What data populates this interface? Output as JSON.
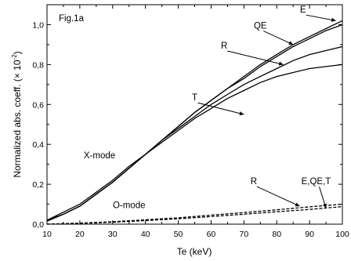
{
  "chart_data": {
    "type": "line",
    "panel_label": "Fig.1a",
    "xlabel": "Te (keV)",
    "ylabel": "Normalized abs. coeff. (× 10",
    "ylabel_exp": "-2",
    "ylabel_close": ")",
    "xlim": [
      10,
      100
    ],
    "ylim": [
      0.0,
      1.1
    ],
    "x_ticks": [
      10,
      20,
      30,
      40,
      50,
      60,
      70,
      80,
      90,
      100
    ],
    "x_tick_labels": [
      "10",
      "20",
      "30",
      "40",
      "50",
      "60",
      "70",
      "80",
      "90",
      "100"
    ],
    "y_ticks": [
      0.0,
      0.2,
      0.4,
      0.6,
      0.8,
      1.0
    ],
    "y_tick_labels": [
      "0,0",
      "0,2",
      "0,4",
      "0,6",
      "0,8",
      "1,0"
    ],
    "grid": false,
    "series": [
      {
        "name": "E",
        "mode": "X-mode",
        "style": "solid",
        "x": [
          10,
          15,
          20,
          25,
          30,
          35,
          40,
          45,
          50,
          55,
          60,
          65,
          70,
          75,
          80,
          85,
          90,
          95,
          100
        ],
        "y": [
          0.015,
          0.05,
          0.09,
          0.15,
          0.21,
          0.28,
          0.35,
          0.42,
          0.49,
          0.56,
          0.62,
          0.68,
          0.74,
          0.8,
          0.85,
          0.9,
          0.94,
          0.98,
          1.02
        ]
      },
      {
        "name": "QE",
        "mode": "X-mode",
        "style": "solid",
        "x": [
          10,
          15,
          20,
          25,
          30,
          35,
          40,
          45,
          50,
          55,
          60,
          65,
          70,
          75,
          80,
          85,
          90,
          95,
          100
        ],
        "y": [
          0.015,
          0.05,
          0.09,
          0.15,
          0.21,
          0.28,
          0.35,
          0.42,
          0.49,
          0.56,
          0.62,
          0.68,
          0.73,
          0.79,
          0.84,
          0.89,
          0.93,
          0.97,
          1.0
        ]
      },
      {
        "name": "R",
        "mode": "X-mode",
        "style": "solid",
        "x": [
          10,
          15,
          20,
          25,
          30,
          35,
          40,
          45,
          50,
          55,
          60,
          65,
          70,
          75,
          80,
          85,
          90,
          95,
          100
        ],
        "y": [
          0.02,
          0.06,
          0.1,
          0.16,
          0.22,
          0.29,
          0.35,
          0.42,
          0.48,
          0.54,
          0.6,
          0.65,
          0.7,
          0.74,
          0.78,
          0.82,
          0.85,
          0.87,
          0.89
        ]
      },
      {
        "name": "T",
        "mode": "X-mode",
        "style": "solid",
        "x": [
          10,
          15,
          20,
          25,
          30,
          35,
          40,
          45,
          50,
          55,
          60,
          65,
          70,
          75,
          80,
          85,
          90,
          95,
          100
        ],
        "y": [
          0.02,
          0.05,
          0.09,
          0.15,
          0.21,
          0.28,
          0.35,
          0.41,
          0.47,
          0.53,
          0.58,
          0.63,
          0.67,
          0.71,
          0.74,
          0.76,
          0.78,
          0.79,
          0.8
        ]
      },
      {
        "name": "R",
        "mode": "O-mode",
        "style": "dashed",
        "x": [
          10,
          20,
          30,
          40,
          50,
          60,
          70,
          80,
          90,
          100
        ],
        "y": [
          0.0,
          0.005,
          0.012,
          0.022,
          0.032,
          0.045,
          0.058,
          0.072,
          0.087,
          0.1
        ]
      },
      {
        "name": "E,QE,T",
        "mode": "O-mode",
        "style": "dashed",
        "x": [
          10,
          20,
          30,
          40,
          50,
          60,
          70,
          80,
          90,
          100
        ],
        "y": [
          0.0,
          0.004,
          0.01,
          0.018,
          0.027,
          0.038,
          0.05,
          0.062,
          0.074,
          0.088
        ]
      }
    ],
    "annotations": [
      {
        "text": "E",
        "x": 88,
        "y": 1.06,
        "arrow_to": [
          98,
          1.02
        ]
      },
      {
        "text": "QE",
        "x": 75,
        "y": 0.98,
        "arrow_to": [
          85,
          0.9
        ]
      },
      {
        "text": "R",
        "x": 64,
        "y": 0.88,
        "arrow_to": [
          82,
          0.8
        ]
      },
      {
        "text": "T",
        "x": 55,
        "y": 0.62,
        "arrow_to": [
          70,
          0.55
        ]
      },
      {
        "text": "X-mode",
        "x": 26,
        "y": 0.33
      },
      {
        "text": "O-mode",
        "x": 35,
        "y": 0.08
      },
      {
        "text": "R",
        "x": 73,
        "y": 0.2,
        "arrow_to": [
          87,
          0.09
        ]
      },
      {
        "text": "E,QE,T",
        "x": 92,
        "y": 0.2,
        "arrow_to": [
          95,
          0.08
        ]
      }
    ]
  }
}
